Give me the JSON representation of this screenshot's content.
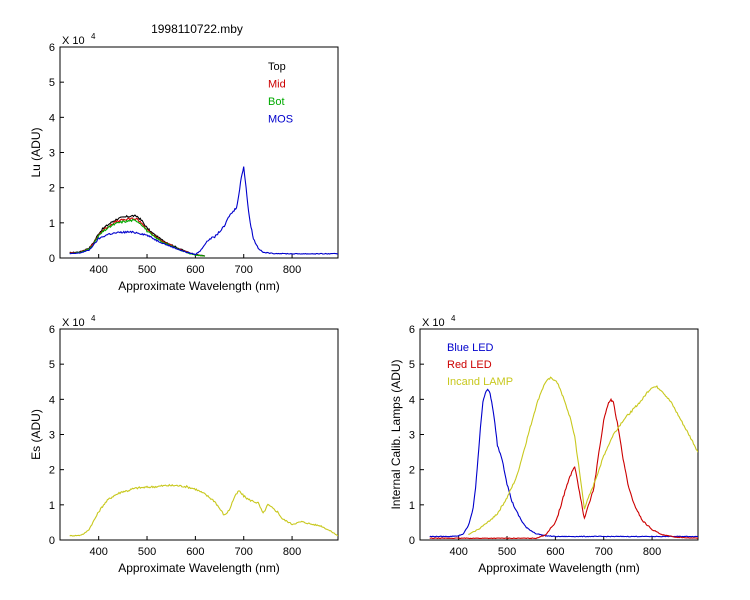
{
  "figure_title": "1998110722.mby",
  "chart_data": [
    {
      "type": "line",
      "id": "lu",
      "title": "1998110722.mby",
      "xlabel": "Approximate Wavelength (nm)",
      "ylabel": "Lu (ADU)",
      "exponent_label": "X 10",
      "exponent": "4",
      "xlim": [
        320,
        895
      ],
      "ylim": [
        0,
        6
      ],
      "xticks": [
        400,
        500,
        600,
        700,
        800
      ],
      "yticks": [
        0,
        1,
        2,
        3,
        4,
        5,
        6
      ],
      "legend_position": "top-right",
      "series": [
        {
          "name": "Top",
          "color": "#000000",
          "x": [
            340,
            360,
            380,
            390,
            400,
            410,
            420,
            430,
            440,
            450,
            460,
            470,
            480,
            490,
            500,
            510,
            520,
            530,
            540,
            550,
            560,
            570,
            580,
            590,
            600,
            610,
            620
          ],
          "y": [
            0.15,
            0.17,
            0.28,
            0.45,
            0.7,
            0.85,
            0.95,
            1.05,
            1.12,
            1.15,
            1.18,
            1.2,
            1.18,
            1.05,
            0.85,
            0.72,
            0.62,
            0.52,
            0.45,
            0.38,
            0.31,
            0.25,
            0.19,
            0.14,
            0.1,
            0.08,
            0.06
          ]
        },
        {
          "name": "Mid",
          "color": "#cc0000",
          "x": [
            340,
            360,
            380,
            390,
            400,
            410,
            420,
            430,
            440,
            450,
            460,
            470,
            480,
            490,
            500,
            510,
            520,
            530,
            540,
            550,
            560,
            570,
            580,
            590,
            600,
            610,
            620
          ],
          "y": [
            0.14,
            0.16,
            0.26,
            0.42,
            0.66,
            0.8,
            0.9,
            0.99,
            1.05,
            1.08,
            1.1,
            1.12,
            1.1,
            0.98,
            0.8,
            0.68,
            0.58,
            0.49,
            0.42,
            0.36,
            0.29,
            0.23,
            0.18,
            0.13,
            0.09,
            0.07,
            0.06
          ]
        },
        {
          "name": "Bot",
          "color": "#00aa00",
          "x": [
            340,
            360,
            380,
            390,
            400,
            410,
            420,
            430,
            440,
            450,
            460,
            470,
            480,
            490,
            500,
            510,
            520,
            530,
            540,
            550,
            560,
            570,
            580,
            590,
            600,
            610,
            620
          ],
          "y": [
            0.13,
            0.15,
            0.25,
            0.4,
            0.63,
            0.76,
            0.86,
            0.94,
            1.0,
            1.03,
            1.05,
            1.07,
            1.05,
            0.94,
            0.77,
            0.65,
            0.56,
            0.47,
            0.4,
            0.34,
            0.28,
            0.22,
            0.17,
            0.12,
            0.08,
            0.07,
            0.05
          ]
        },
        {
          "name": "MOS",
          "color": "#0000cc",
          "x": [
            340,
            360,
            380,
            390,
            400,
            420,
            440,
            460,
            480,
            500,
            520,
            540,
            560,
            580,
            600,
            610,
            620,
            630,
            640,
            650,
            660,
            670,
            680,
            685,
            690,
            695,
            700,
            705,
            710,
            715,
            720,
            730,
            740,
            760,
            800,
            850,
            895
          ],
          "y": [
            0.12,
            0.14,
            0.22,
            0.38,
            0.55,
            0.68,
            0.72,
            0.74,
            0.72,
            0.65,
            0.5,
            0.38,
            0.27,
            0.17,
            0.1,
            0.2,
            0.4,
            0.55,
            0.6,
            0.75,
            0.9,
            1.2,
            1.35,
            1.45,
            1.8,
            2.3,
            2.6,
            2.0,
            1.3,
            0.9,
            0.55,
            0.28,
            0.16,
            0.13,
            0.12,
            0.12,
            0.12
          ]
        }
      ]
    },
    {
      "type": "line",
      "id": "es",
      "title": "",
      "xlabel": "Approximate Wavelength (nm)",
      "ylabel": "Es (ADU)",
      "exponent_label": "X 10",
      "exponent": "4",
      "xlim": [
        320,
        895
      ],
      "ylim": [
        0,
        6
      ],
      "xticks": [
        400,
        500,
        600,
        700,
        800
      ],
      "yticks": [
        0,
        1,
        2,
        3,
        4,
        5,
        6
      ],
      "series": [
        {
          "name": "",
          "color": "#c8c81e",
          "x": [
            340,
            360,
            370,
            380,
            390,
            400,
            410,
            420,
            430,
            440,
            450,
            460,
            470,
            480,
            500,
            520,
            540,
            560,
            580,
            600,
            620,
            640,
            660,
            670,
            680,
            690,
            700,
            710,
            720,
            730,
            740,
            750,
            760,
            770,
            780,
            800,
            820,
            840,
            860,
            880,
            895
          ],
          "y": [
            0.12,
            0.13,
            0.18,
            0.3,
            0.55,
            0.8,
            1.0,
            1.15,
            1.25,
            1.32,
            1.38,
            1.4,
            1.45,
            1.48,
            1.5,
            1.52,
            1.55,
            1.55,
            1.52,
            1.45,
            1.3,
            1.1,
            0.7,
            0.85,
            1.2,
            1.4,
            1.25,
            1.15,
            1.1,
            1.05,
            0.75,
            1.0,
            0.9,
            0.8,
            0.6,
            0.45,
            0.52,
            0.45,
            0.4,
            0.25,
            0.12
          ]
        }
      ]
    },
    {
      "type": "line",
      "id": "calib",
      "title": "",
      "xlabel": "Approximate Wavelength (nm)",
      "ylabel": "Internal Calib. Lamps (ADU)",
      "exponent_label": "X 10",
      "exponent": "4",
      "xlim": [
        320,
        895
      ],
      "ylim": [
        0,
        6
      ],
      "xticks": [
        400,
        500,
        600,
        700,
        800
      ],
      "yticks": [
        0,
        1,
        2,
        3,
        4,
        5,
        6
      ],
      "legend_position": "top-left",
      "series": [
        {
          "name": "Blue LED",
          "color": "#0000cc",
          "x": [
            340,
            380,
            400,
            410,
            420,
            430,
            435,
            440,
            445,
            450,
            455,
            460,
            465,
            470,
            475,
            480,
            490,
            500,
            510,
            520,
            530,
            540,
            560,
            580,
            600,
            640,
            700,
            895
          ],
          "y": [
            0.1,
            0.1,
            0.12,
            0.18,
            0.4,
            0.9,
            1.5,
            2.3,
            3.2,
            3.9,
            4.2,
            4.3,
            4.15,
            3.8,
            3.3,
            2.7,
            2.3,
            1.6,
            1.1,
            0.8,
            0.55,
            0.35,
            0.18,
            0.12,
            0.1,
            0.1,
            0.1,
            0.1
          ]
        },
        {
          "name": "Red LED",
          "color": "#cc0000",
          "x": [
            340,
            560,
            580,
            600,
            610,
            620,
            630,
            640,
            660,
            680,
            690,
            700,
            710,
            715,
            720,
            730,
            740,
            750,
            760,
            780,
            800,
            820,
            850,
            895
          ],
          "y": [
            0.05,
            0.05,
            0.15,
            0.5,
            0.9,
            1.4,
            1.8,
            2.1,
            0.6,
            1.5,
            2.5,
            3.4,
            3.9,
            4.0,
            3.9,
            3.2,
            2.3,
            1.6,
            1.1,
            0.55,
            0.3,
            0.15,
            0.08,
            0.05
          ]
        },
        {
          "name": "Incand LAMP",
          "color": "#c8c81e",
          "x": [
            420,
            440,
            460,
            480,
            500,
            510,
            520,
            530,
            540,
            550,
            560,
            570,
            580,
            590,
            600,
            610,
            620,
            630,
            640,
            660,
            680,
            700,
            720,
            740,
            760,
            780,
            790,
            800,
            810,
            820,
            840,
            860,
            880,
            895
          ],
          "y": [
            0.15,
            0.3,
            0.5,
            0.75,
            1.2,
            1.5,
            1.8,
            2.3,
            2.8,
            3.3,
            3.8,
            4.2,
            4.5,
            4.6,
            4.55,
            4.3,
            3.9,
            3.5,
            2.95,
            0.9,
            1.6,
            2.4,
            3.0,
            3.4,
            3.7,
            4.0,
            4.2,
            4.35,
            4.35,
            4.25,
            3.9,
            3.4,
            2.9,
            2.5
          ]
        }
      ]
    }
  ]
}
